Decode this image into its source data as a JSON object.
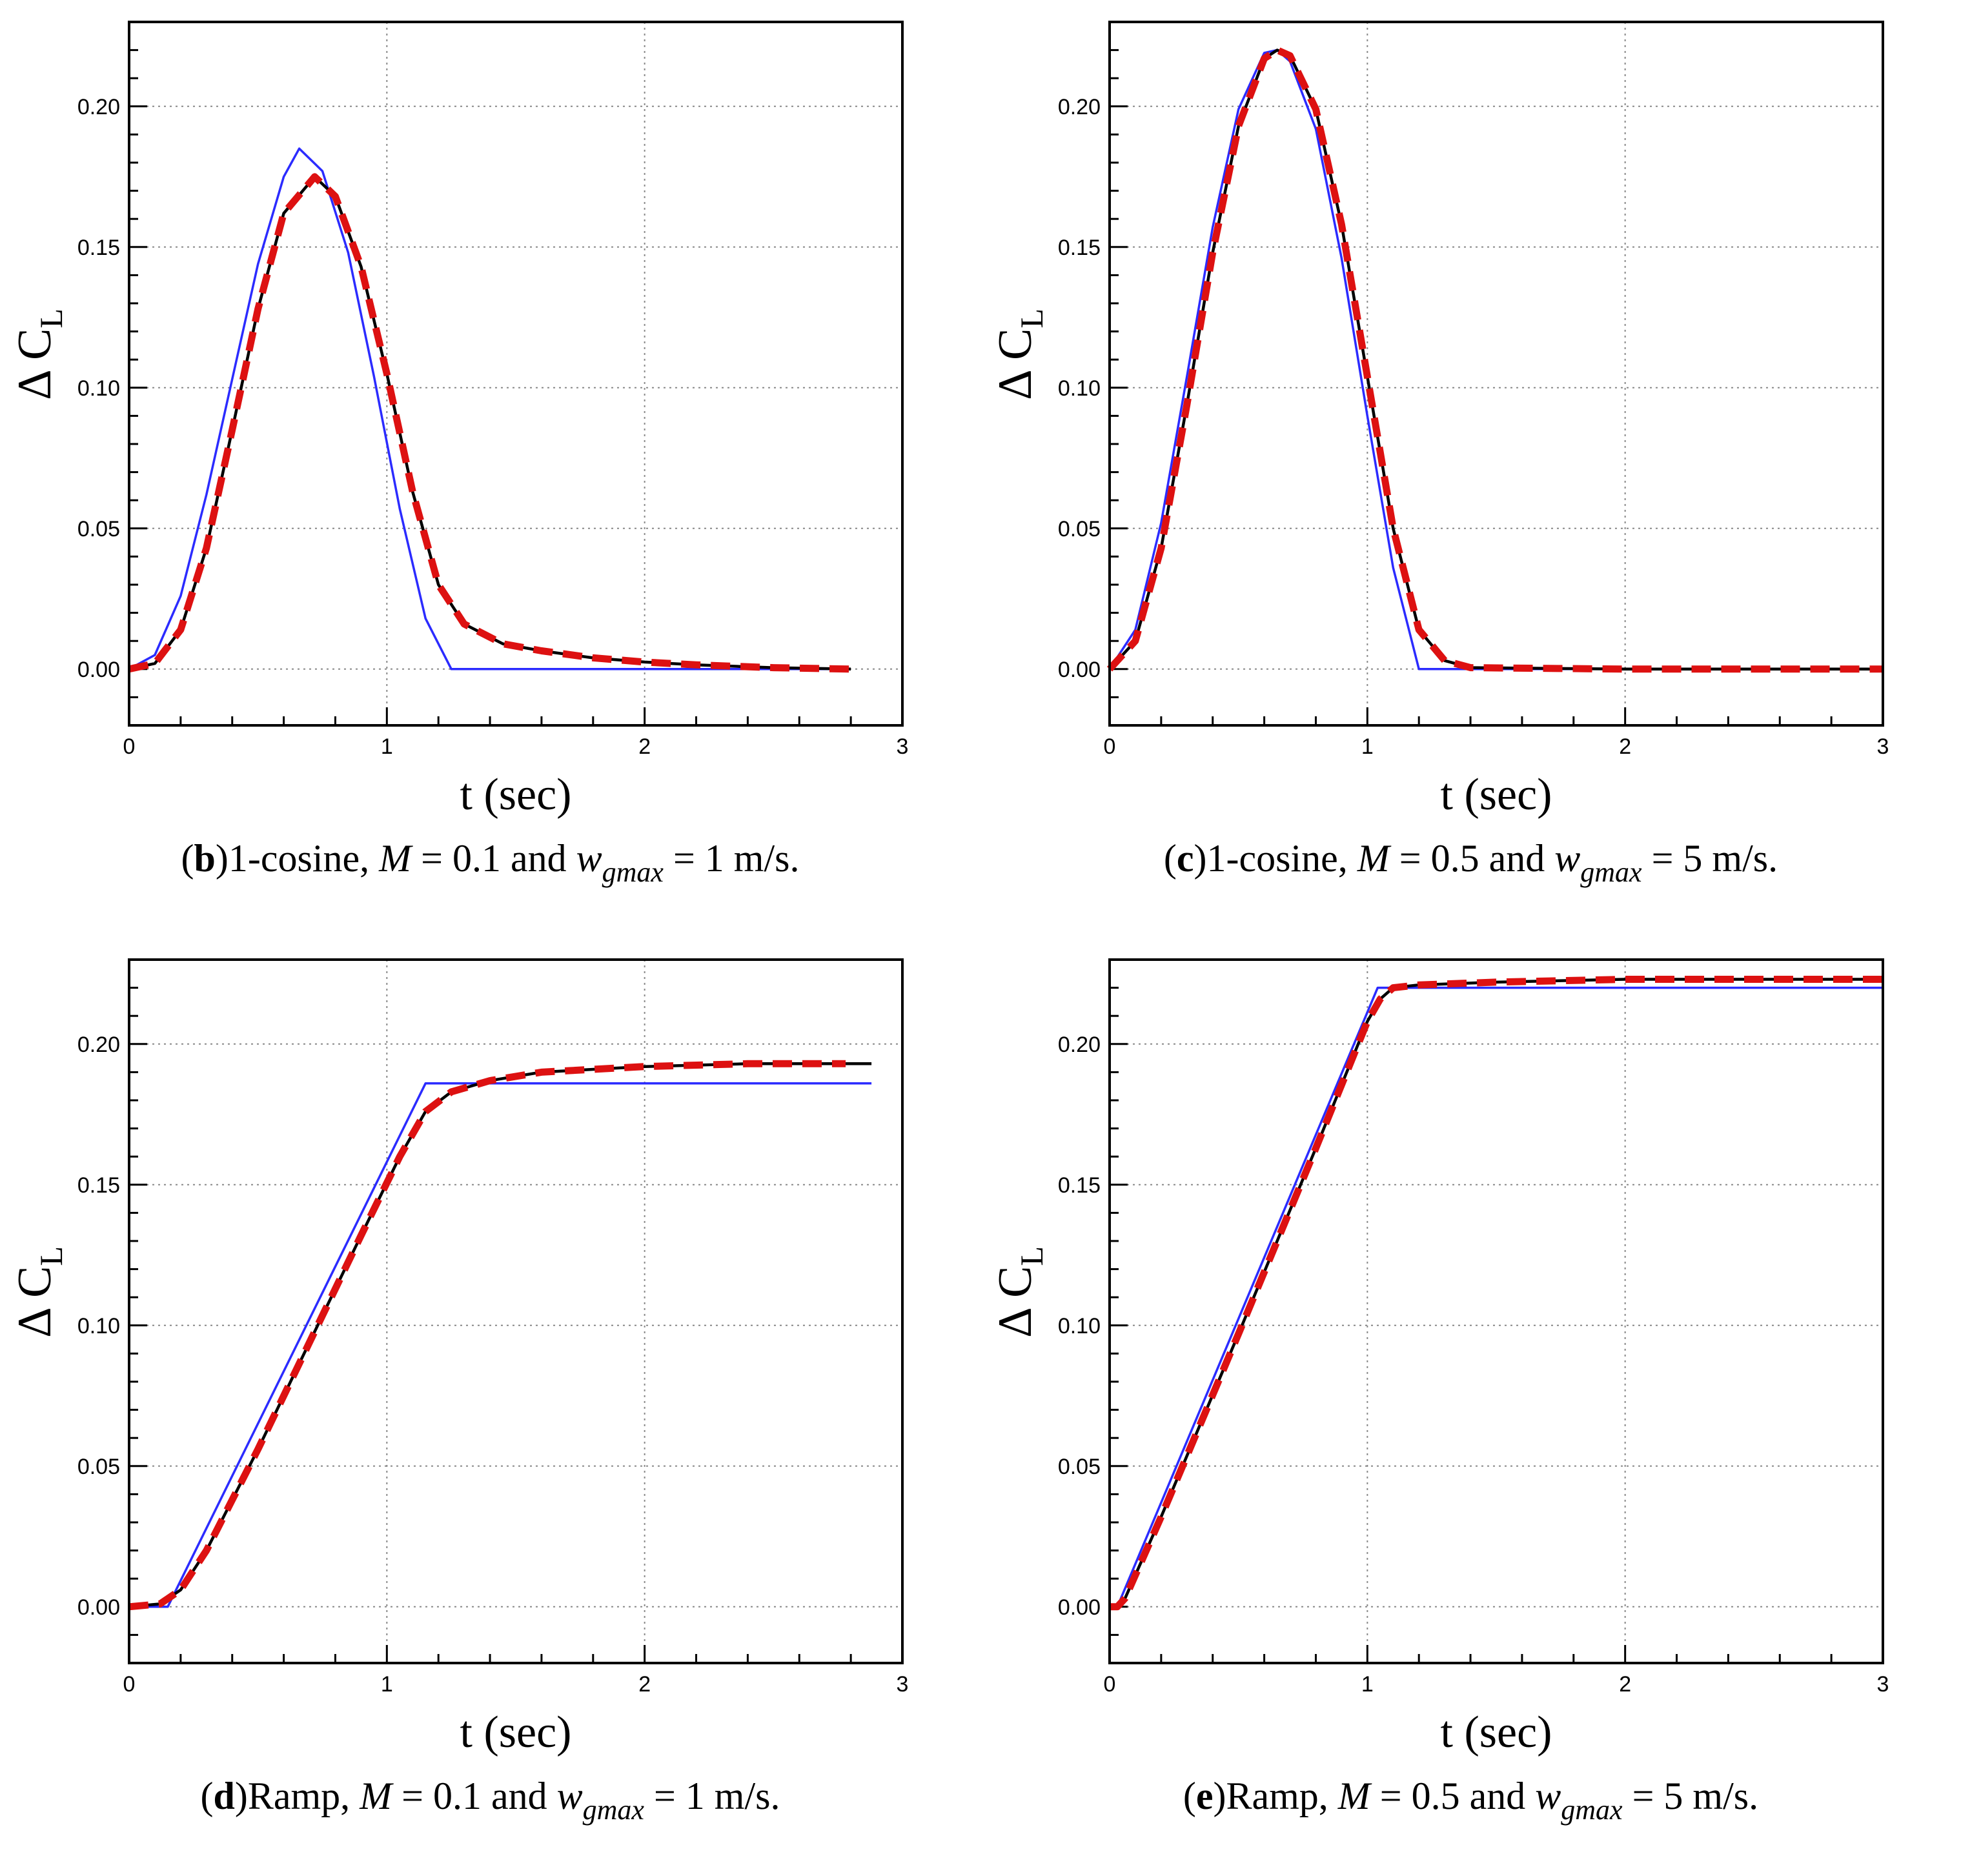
{
  "figure": {
    "panels": [
      {
        "caption": {
          "letter": "b",
          "prefix": "1-cosine, ",
          "m_var": "M",
          "m_rel": " = 0.1 and ",
          "w_var": "w",
          "w_sub": "gmax",
          "w_rel": " = 1 m/s."
        }
      },
      {
        "caption": {
          "letter": "c",
          "prefix": "1-cosine, ",
          "m_var": "M",
          "m_rel": " = 0.5 and ",
          "w_var": "w",
          "w_sub": "gmax",
          "w_rel": " = 5 m/s."
        }
      },
      {
        "caption": {
          "letter": "d",
          "prefix": "Ramp, ",
          "m_var": "M",
          "m_rel": " = 0.1 and ",
          "w_var": "w",
          "w_sub": "gmax",
          "w_rel": " = 1 m/s."
        }
      },
      {
        "caption": {
          "letter": "e",
          "prefix": "Ramp, ",
          "m_var": "M",
          "m_rel": " = 0.5 and ",
          "w_var": "w",
          "w_sub": "gmax",
          "w_rel": " = 5 m/s."
        }
      }
    ]
  },
  "colors": {
    "blue_series": "#2b2bff",
    "black_series": "#000000",
    "red_series": "#dd1111",
    "grid": "#888888"
  },
  "chart_data": [
    {
      "type": "line",
      "title": "",
      "xlabel": "t (sec)",
      "ylabel": "Δ C_L",
      "ylabel_main": "Δ C",
      "ylabel_sub": "L",
      "xlim": [
        0,
        3
      ],
      "ylim": [
        -0.02,
        0.23
      ],
      "xticks": [
        0,
        1,
        2,
        3
      ],
      "xtick_labels": [
        "0",
        "1",
        "2",
        "3"
      ],
      "yticks": [
        0.0,
        0.05,
        0.1,
        0.15,
        0.2
      ],
      "ytick_labels": [
        "0.00",
        "0.05",
        "0.10",
        "0.15",
        "0.20"
      ],
      "grid": true,
      "series": [
        {
          "name": "blue",
          "style": "solid-thin",
          "x": [
            0,
            0.1,
            0.2,
            0.3,
            0.4,
            0.5,
            0.6,
            0.66,
            0.75,
            0.85,
            0.95,
            1.05,
            1.15,
            1.25,
            2.78
          ],
          "y": [
            0,
            0.005,
            0.026,
            0.062,
            0.103,
            0.144,
            0.175,
            0.185,
            0.177,
            0.148,
            0.104,
            0.057,
            0.018,
            0,
            0
          ]
        },
        {
          "name": "black",
          "style": "solid",
          "x": [
            0,
            0.1,
            0.2,
            0.3,
            0.4,
            0.5,
            0.6,
            0.72,
            0.8,
            0.9,
            1.0,
            1.1,
            1.2,
            1.3,
            1.45,
            1.6,
            1.8,
            2.0,
            2.2,
            2.5,
            2.8
          ],
          "y": [
            0,
            0.002,
            0.014,
            0.043,
            0.085,
            0.128,
            0.162,
            0.175,
            0.168,
            0.143,
            0.105,
            0.063,
            0.03,
            0.016,
            0.009,
            0.0065,
            0.004,
            0.0025,
            0.0015,
            0.0005,
            0
          ]
        },
        {
          "name": "red",
          "style": "dashed-thick",
          "x": [
            0,
            0.1,
            0.2,
            0.3,
            0.4,
            0.5,
            0.6,
            0.72,
            0.8,
            0.9,
            1.0,
            1.1,
            1.2,
            1.3,
            1.45,
            1.6,
            1.8,
            2.0,
            2.2,
            2.5,
            2.8
          ],
          "y": [
            0,
            0.002,
            0.014,
            0.043,
            0.085,
            0.128,
            0.162,
            0.175,
            0.168,
            0.143,
            0.105,
            0.063,
            0.03,
            0.016,
            0.009,
            0.0065,
            0.004,
            0.0025,
            0.0015,
            0.0005,
            0
          ]
        }
      ]
    },
    {
      "type": "line",
      "title": "",
      "xlabel": "t (sec)",
      "ylabel": "Δ C_L",
      "ylabel_main": "Δ C",
      "ylabel_sub": "L",
      "xlim": [
        0,
        3
      ],
      "ylim": [
        -0.02,
        0.23
      ],
      "xticks": [
        0,
        1,
        2,
        3
      ],
      "xtick_labels": [
        "0",
        "1",
        "2",
        "3"
      ],
      "yticks": [
        0.0,
        0.05,
        0.1,
        0.15,
        0.2
      ],
      "ytick_labels": [
        "0.00",
        "0.05",
        "0.10",
        "0.15",
        "0.20"
      ],
      "grid": true,
      "series": [
        {
          "name": "blue",
          "style": "solid-thin",
          "x": [
            0,
            0.1,
            0.2,
            0.3,
            0.4,
            0.5,
            0.6,
            0.65,
            0.7,
            0.8,
            0.9,
            1.0,
            1.1,
            1.2,
            3.0
          ],
          "y": [
            0,
            0.014,
            0.052,
            0.104,
            0.157,
            0.199,
            0.219,
            0.22,
            0.216,
            0.192,
            0.146,
            0.09,
            0.036,
            0,
            0
          ]
        },
        {
          "name": "black",
          "style": "solid",
          "x": [
            0,
            0.1,
            0.2,
            0.3,
            0.4,
            0.5,
            0.6,
            0.65,
            0.7,
            0.8,
            0.9,
            1.0,
            1.1,
            1.2,
            1.3,
            1.4,
            2.0,
            3.0
          ],
          "y": [
            0,
            0.01,
            0.043,
            0.094,
            0.148,
            0.193,
            0.217,
            0.22,
            0.218,
            0.199,
            0.158,
            0.104,
            0.05,
            0.014,
            0.003,
            0.0005,
            0,
            0
          ]
        },
        {
          "name": "red",
          "style": "dashed-thick",
          "x": [
            0,
            0.1,
            0.2,
            0.3,
            0.4,
            0.5,
            0.6,
            0.65,
            0.7,
            0.8,
            0.9,
            1.0,
            1.1,
            1.2,
            1.3,
            1.4,
            2.0,
            3.0
          ],
          "y": [
            0,
            0.01,
            0.043,
            0.094,
            0.148,
            0.193,
            0.217,
            0.22,
            0.218,
            0.199,
            0.158,
            0.104,
            0.05,
            0.014,
            0.003,
            0.0005,
            0,
            0
          ]
        }
      ]
    },
    {
      "type": "line",
      "title": "",
      "xlabel": "t (sec)",
      "ylabel": "Δ C_L",
      "ylabel_main": "Δ C",
      "ylabel_sub": "L",
      "xlim": [
        0,
        3
      ],
      "ylim": [
        -0.02,
        0.23
      ],
      "xticks": [
        0,
        1,
        2,
        3
      ],
      "xtick_labels": [
        "0",
        "1",
        "2",
        "3"
      ],
      "yticks": [
        0.0,
        0.05,
        0.1,
        0.15,
        0.2
      ],
      "ytick_labels": [
        "0.00",
        "0.05",
        "0.10",
        "0.15",
        "0.20"
      ],
      "grid": true,
      "series": [
        {
          "name": "blue",
          "style": "solid-thin",
          "x": [
            0,
            0.15,
            1.15,
            2.88
          ],
          "y": [
            0,
            0,
            0.186,
            0.186
          ]
        },
        {
          "name": "black",
          "style": "solid",
          "x": [
            0,
            0.12,
            0.2,
            0.3,
            0.5,
            0.7,
            0.9,
            1.05,
            1.15,
            1.25,
            1.4,
            1.6,
            2.0,
            2.4,
            2.88
          ],
          "y": [
            0,
            0.001,
            0.006,
            0.02,
            0.056,
            0.094,
            0.132,
            0.16,
            0.176,
            0.183,
            0.187,
            0.19,
            0.192,
            0.193,
            0.193
          ]
        },
        {
          "name": "red",
          "style": "dashed-thick",
          "x": [
            0,
            0.12,
            0.2,
            0.3,
            0.5,
            0.7,
            0.9,
            1.05,
            1.15,
            1.25,
            1.4,
            1.6,
            2.0,
            2.4,
            2.78
          ],
          "y": [
            0,
            0.001,
            0.006,
            0.02,
            0.056,
            0.094,
            0.132,
            0.16,
            0.176,
            0.183,
            0.187,
            0.19,
            0.192,
            0.193,
            0.193
          ]
        }
      ]
    },
    {
      "type": "line",
      "title": "",
      "xlabel": "t (sec)",
      "ylabel": "Δ C_L",
      "ylabel_main": "Δ C",
      "ylabel_sub": "L",
      "xlim": [
        0,
        3
      ],
      "ylim": [
        -0.02,
        0.23
      ],
      "xticks": [
        0,
        1,
        2,
        3
      ],
      "xtick_labels": [
        "0",
        "1",
        "2",
        "3"
      ],
      "yticks": [
        0.0,
        0.05,
        0.1,
        0.15,
        0.2
      ],
      "ytick_labels": [
        "0.00",
        "0.05",
        "0.10",
        "0.15",
        "0.20"
      ],
      "grid": true,
      "series": [
        {
          "name": "blue",
          "style": "solid-thin",
          "x": [
            0.03,
            1.04,
            3.0
          ],
          "y": [
            0,
            0.22,
            0.22
          ]
        },
        {
          "name": "black",
          "style": "solid",
          "x": [
            0,
            0.03,
            0.06,
            0.2,
            0.5,
            0.8,
            1.0,
            1.05,
            1.1,
            1.2,
            1.5,
            2.0,
            3.0
          ],
          "y": [
            0,
            0,
            0.003,
            0.032,
            0.097,
            0.163,
            0.208,
            0.216,
            0.22,
            0.221,
            0.222,
            0.223,
            0.223
          ]
        },
        {
          "name": "red",
          "style": "dashed-thick",
          "x": [
            0,
            0.03,
            0.06,
            0.2,
            0.5,
            0.8,
            1.0,
            1.05,
            1.1,
            1.2,
            1.5,
            2.0,
            3.0
          ],
          "y": [
            0,
            0,
            0.003,
            0.032,
            0.097,
            0.163,
            0.208,
            0.216,
            0.22,
            0.221,
            0.222,
            0.223,
            0.223
          ]
        }
      ]
    }
  ]
}
